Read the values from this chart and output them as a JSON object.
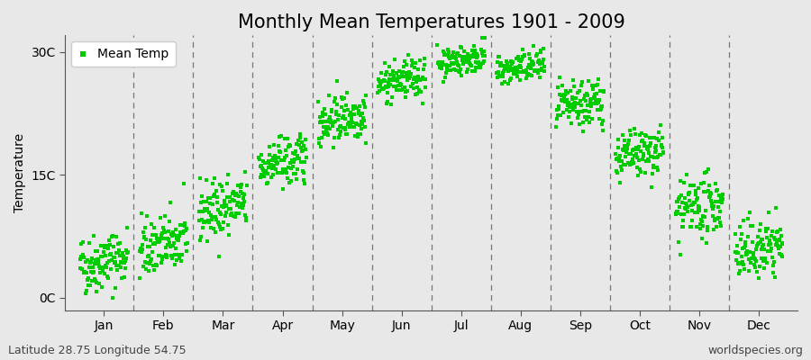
{
  "title": "Monthly Mean Temperatures 1901 - 2009",
  "ylabel": "Temperature",
  "monthly_means": [
    4.5,
    6.5,
    11.0,
    16.5,
    22.0,
    26.5,
    29.0,
    28.0,
    23.5,
    17.5,
    11.0,
    6.0
  ],
  "monthly_stds": [
    1.8,
    1.8,
    1.8,
    1.5,
    1.5,
    1.2,
    0.9,
    1.0,
    1.5,
    1.5,
    1.8,
    1.8
  ],
  "trend_per_year": [
    0.012,
    0.012,
    0.012,
    0.01,
    0.01,
    0.01,
    0.008,
    0.008,
    0.01,
    0.01,
    0.012,
    0.012
  ],
  "n_years": 109,
  "dot_color": "#00cc00",
  "dot_size": 5,
  "bg_color": "#e8e8e8",
  "fig_color": "#e8e8e8",
  "ytick_labels": [
    "0C",
    "15C",
    "30C"
  ],
  "ytick_values": [
    0,
    15,
    30
  ],
  "ylim": [
    -1.5,
    32
  ],
  "month_names": [
    "Jan",
    "Feb",
    "Mar",
    "Apr",
    "May",
    "Jun",
    "Jul",
    "Aug",
    "Sep",
    "Oct",
    "Nov",
    "Dec"
  ],
  "legend_label": "Mean Temp",
  "footnote_left": "Latitude 28.75 Longitude 54.75",
  "footnote_right": "worldspecies.org",
  "title_fontsize": 15,
  "axis_fontsize": 10,
  "tick_fontsize": 10,
  "footnote_fontsize": 9
}
